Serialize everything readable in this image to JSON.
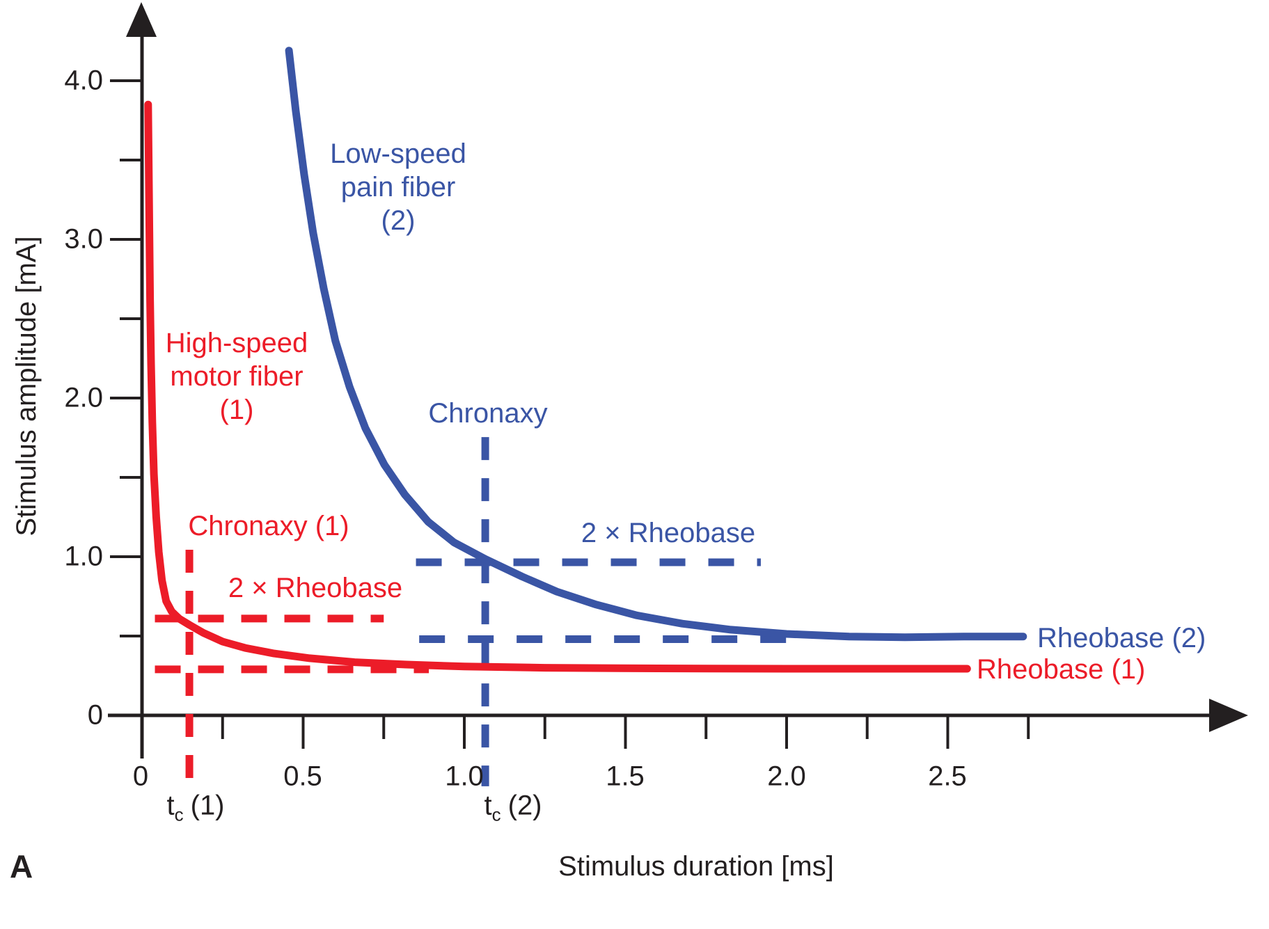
{
  "figure": {
    "panel_label": "A"
  },
  "chart_data": {
    "type": "line",
    "title": "",
    "xlabel": "Stimulus duration [ms]",
    "ylabel": "Stimulus amplitude [mA]",
    "xlim": [
      0,
      2.9
    ],
    "ylim": [
      0,
      4.4
    ],
    "grid": "off",
    "axis_color": "#231f20",
    "x_axis": {
      "major_ticks": [
        0.5,
        1.0,
        1.5,
        2.0,
        2.5
      ],
      "minor_ticks": [
        0.25,
        0.75,
        1.25,
        1.75,
        2.25,
        2.75
      ],
      "tick_labels": [
        {
          "value": 0,
          "text": "0"
        },
        {
          "value": 0.5,
          "text": "0.5"
        },
        {
          "value": 1.0,
          "text": "1.0"
        },
        {
          "value": 1.5,
          "text": "1.5"
        },
        {
          "value": 2.0,
          "text": "2.0"
        },
        {
          "value": 2.5,
          "text": "2.5"
        }
      ]
    },
    "y_axis": {
      "major_ticks": [
        1,
        2,
        3,
        4
      ],
      "minor_ticks": [
        0.5,
        1.5,
        2.5,
        3.5
      ],
      "tick_labels": [
        {
          "value": 4.0,
          "text": "4.0"
        },
        {
          "value": 3.0,
          "text": "3.0"
        },
        {
          "value": 2.0,
          "text": "2.0"
        },
        {
          "value": 1.0,
          "text": "1.0"
        },
        {
          "value": 0,
          "text": "0"
        }
      ]
    },
    "series": [
      {
        "id": "motor",
        "name": "High-speed motor fiber (1)",
        "color": "#ec1c28",
        "rheobase_mA": 0.3,
        "chronaxy_ms": 0.15,
        "points": [
          [
            0.019,
            3.85
          ],
          [
            0.021,
            3.45
          ],
          [
            0.023,
            3.05
          ],
          [
            0.025,
            2.62
          ],
          [
            0.028,
            2.22
          ],
          [
            0.032,
            1.85
          ],
          [
            0.037,
            1.52
          ],
          [
            0.044,
            1.25
          ],
          [
            0.052,
            1.03
          ],
          [
            0.062,
            0.85
          ],
          [
            0.075,
            0.72
          ],
          [
            0.092,
            0.655
          ],
          [
            0.115,
            0.61
          ],
          [
            0.147,
            0.57
          ],
          [
            0.19,
            0.52
          ],
          [
            0.25,
            0.465
          ],
          [
            0.32,
            0.425
          ],
          [
            0.41,
            0.39
          ],
          [
            0.52,
            0.36
          ],
          [
            0.66,
            0.335
          ],
          [
            0.82,
            0.32
          ],
          [
            1.0,
            0.308
          ],
          [
            1.25,
            0.3
          ],
          [
            1.6,
            0.296
          ],
          [
            2.0,
            0.294
          ],
          [
            2.56,
            0.294
          ]
        ]
      },
      {
        "id": "pain",
        "name": "Low-speed pain fiber (2)",
        "color": "#3a55a5",
        "rheobase_mA": 0.5,
        "chronaxy_ms": 1.07,
        "points": [
          [
            0.456,
            4.19
          ],
          [
            0.477,
            3.81
          ],
          [
            0.503,
            3.41
          ],
          [
            0.531,
            3.04
          ],
          [
            0.564,
            2.69
          ],
          [
            0.6,
            2.36
          ],
          [
            0.644,
            2.07
          ],
          [
            0.693,
            1.81
          ],
          [
            0.752,
            1.58
          ],
          [
            0.816,
            1.39
          ],
          [
            0.888,
            1.22
          ],
          [
            0.968,
            1.09
          ],
          [
            1.065,
            0.985
          ],
          [
            1.179,
            0.875
          ],
          [
            1.287,
            0.78
          ],
          [
            1.406,
            0.7
          ],
          [
            1.536,
            0.63
          ],
          [
            1.676,
            0.578
          ],
          [
            1.827,
            0.54
          ],
          [
            2.0,
            0.513
          ],
          [
            2.194,
            0.497
          ],
          [
            2.367,
            0.492
          ],
          [
            2.55,
            0.497
          ],
          [
            2.734,
            0.497
          ]
        ]
      }
    ],
    "annotations": {
      "red_two_x_rheobase_line": {
        "y": 0.61,
        "x1": 0.04,
        "x2": 0.75
      },
      "red_rheobase_line": {
        "y": 0.29,
        "x1": 0.04,
        "x2": 0.89
      },
      "red_chronaxy_line": {
        "x": 0.147,
        "y1": 1.044,
        "y2": -0.447
      },
      "blue_two_x_rheobase_line": {
        "y": 0.965,
        "x1": 0.85,
        "x2": 1.92
      },
      "blue_rheobase_line": {
        "y": 0.48,
        "x1": 0.86,
        "x2": 2.04
      },
      "blue_chronaxy_line": {
        "x": 1.065,
        "y1": 1.754,
        "y2": -0.447
      }
    },
    "labels": {
      "pain_fiber": {
        "lines": [
          "Low-speed",
          "pain fiber",
          "(2)"
        ]
      },
      "motor_fiber": {
        "lines": [
          "High-speed",
          "motor fiber",
          "(1)"
        ]
      },
      "chronaxy_red": "Chronaxy (1)",
      "chronaxy_blue": "Chronaxy",
      "two_x_rheobase_red": "2 × Rheobase",
      "two_x_rheobase_blue": "2 × Rheobase",
      "rheobase_1": "Rheobase (1)",
      "rheobase_2": "Rheobase (2)",
      "tc_1": {
        "base": "t",
        "sub": "c",
        "rest": "(1)"
      },
      "tc_2": {
        "base": "t",
        "sub": "c",
        "rest": "(2)"
      }
    }
  }
}
